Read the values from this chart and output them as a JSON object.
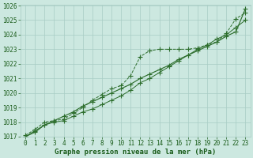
{
  "title": "Graphe pression niveau de la mer (hPa)",
  "x": [
    0,
    1,
    2,
    3,
    4,
    5,
    6,
    7,
    8,
    9,
    10,
    11,
    12,
    13,
    14,
    15,
    16,
    17,
    18,
    19,
    20,
    21,
    22,
    23
  ],
  "line_straight": [
    1017.0,
    1017.4,
    1017.8,
    1018.1,
    1018.4,
    1018.7,
    1019.1,
    1019.4,
    1019.7,
    1020.0,
    1020.3,
    1020.6,
    1021.0,
    1021.3,
    1021.6,
    1021.9,
    1022.3,
    1022.6,
    1022.9,
    1023.2,
    1023.5,
    1023.9,
    1024.2,
    1025.8
  ],
  "line_upper": [
    1017.1,
    1017.5,
    1018.0,
    1018.1,
    1018.2,
    1018.6,
    1019.0,
    1019.5,
    1019.9,
    1020.3,
    1020.5,
    1021.2,
    1022.5,
    1022.9,
    1023.0,
    1023.0,
    1023.0,
    1023.0,
    1023.1,
    1023.3,
    1023.5,
    1024.1,
    1025.1,
    1025.5
  ],
  "line_middle": [
    1017.0,
    1017.3,
    1017.8,
    1018.0,
    1018.1,
    1018.4,
    1018.7,
    1018.9,
    1019.2,
    1019.5,
    1019.8,
    1020.2,
    1020.7,
    1021.0,
    1021.4,
    1021.8,
    1022.2,
    1022.6,
    1023.0,
    1023.3,
    1023.7,
    1024.0,
    1024.5,
    1025.0
  ],
  "line_color": "#2d6e2d",
  "bg_color": "#cce8e0",
  "grid_color": "#a8ccc4",
  "text_color": "#1a5c1a",
  "ylim": [
    1017,
    1026
  ],
  "xlim": [
    -0.5,
    23.5
  ],
  "yticks": [
    1017,
    1018,
    1019,
    1020,
    1021,
    1022,
    1023,
    1024,
    1025,
    1026
  ],
  "xticks": [
    0,
    1,
    2,
    3,
    4,
    5,
    6,
    7,
    8,
    9,
    10,
    11,
    12,
    13,
    14,
    15,
    16,
    17,
    18,
    19,
    20,
    21,
    22,
    23
  ],
  "title_fontsize": 6.5,
  "tick_fontsize": 5.5,
  "marker_size": 2.0,
  "line_width": 0.7
}
